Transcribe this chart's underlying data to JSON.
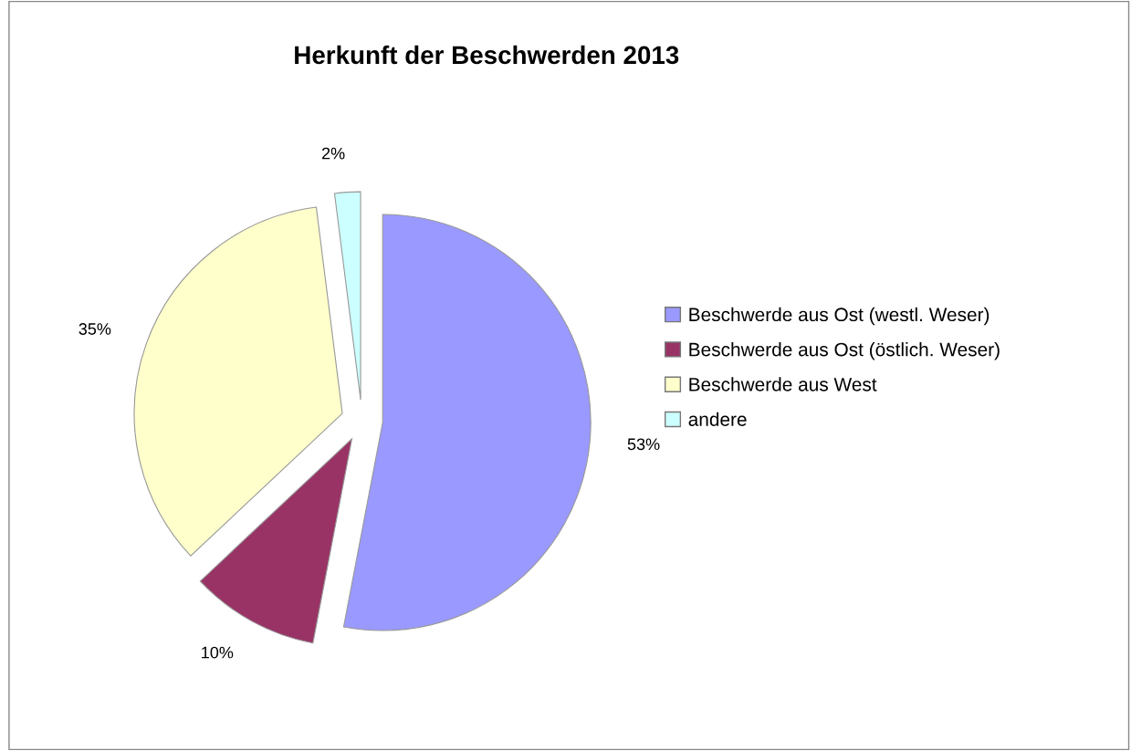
{
  "chart_data": {
    "type": "pie",
    "title": "Herkunft der Beschwerden 2013",
    "categories": [
      "Beschwerde aus Ost (westl. Weser)",
      "Beschwerde aus Ost (östlich. Weser)",
      "Beschwerde aus West",
      "andere"
    ],
    "values": [
      53,
      10,
      35,
      2
    ],
    "colors": [
      "#9999ff",
      "#993366",
      "#ffffcc",
      "#ccffff"
    ],
    "value_labels": [
      "53%",
      "10%",
      "35%",
      "2%"
    ],
    "legend": "right"
  }
}
